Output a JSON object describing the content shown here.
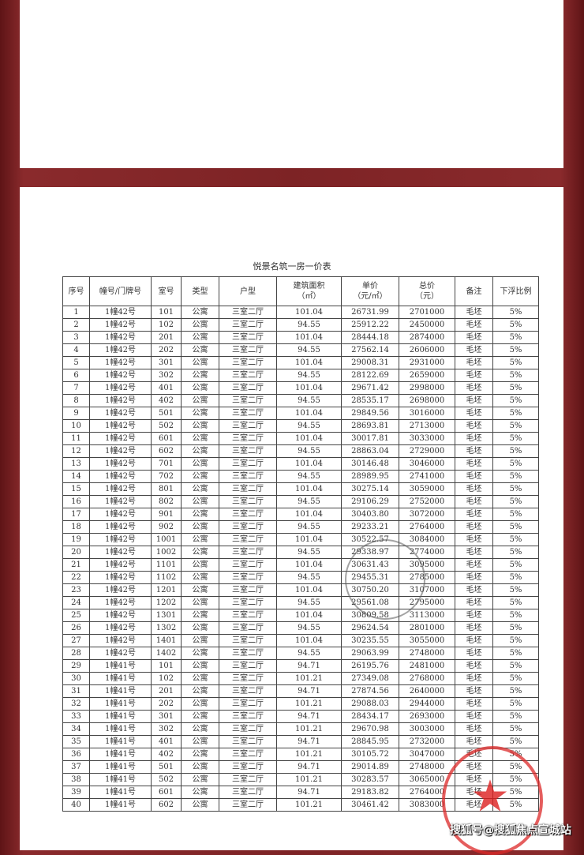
{
  "title": "悦景名筑一房一价表",
  "headers": [
    "序号",
    "幢号/门牌号",
    "室号",
    "类型",
    "户型",
    "建筑面积\n（㎡）",
    "单价\n（元/㎡）",
    "总价\n（元）",
    "备注",
    "下浮比例"
  ],
  "rows": [
    [
      "1",
      "1幢42号",
      "101",
      "公寓",
      "三室二厅",
      "101.04",
      "26731.99",
      "2701000",
      "毛坯",
      "5%"
    ],
    [
      "2",
      "1幢42号",
      "102",
      "公寓",
      "三室二厅",
      "94.55",
      "25912.22",
      "2450000",
      "毛坯",
      "5%"
    ],
    [
      "3",
      "1幢42号",
      "201",
      "公寓",
      "三室二厅",
      "101.04",
      "28444.18",
      "2874000",
      "毛坯",
      "5%"
    ],
    [
      "4",
      "1幢42号",
      "202",
      "公寓",
      "三室二厅",
      "94.55",
      "27562.14",
      "2606000",
      "毛坯",
      "5%"
    ],
    [
      "5",
      "1幢42号",
      "301",
      "公寓",
      "三室二厅",
      "101.04",
      "29008.31",
      "2931000",
      "毛坯",
      "5%"
    ],
    [
      "6",
      "1幢42号",
      "302",
      "公寓",
      "三室二厅",
      "94.55",
      "28122.69",
      "2659000",
      "毛坯",
      "5%"
    ],
    [
      "7",
      "1幢42号",
      "401",
      "公寓",
      "三室二厅",
      "101.04",
      "29671.42",
      "2998000",
      "毛坯",
      "5%"
    ],
    [
      "8",
      "1幢42号",
      "402",
      "公寓",
      "三室二厅",
      "94.55",
      "28535.17",
      "2698000",
      "毛坯",
      "5%"
    ],
    [
      "9",
      "1幢42号",
      "501",
      "公寓",
      "三室二厅",
      "101.04",
      "29849.56",
      "3016000",
      "毛坯",
      "5%"
    ],
    [
      "10",
      "1幢42号",
      "502",
      "公寓",
      "三室二厅",
      "94.55",
      "28693.81",
      "2713000",
      "毛坯",
      "5%"
    ],
    [
      "11",
      "1幢42号",
      "601",
      "公寓",
      "三室二厅",
      "101.04",
      "30017.81",
      "3033000",
      "毛坯",
      "5%"
    ],
    [
      "12",
      "1幢42号",
      "602",
      "公寓",
      "三室二厅",
      "94.55",
      "28863.04",
      "2729000",
      "毛坯",
      "5%"
    ],
    [
      "13",
      "1幢42号",
      "701",
      "公寓",
      "三室二厅",
      "101.04",
      "30146.48",
      "3046000",
      "毛坯",
      "5%"
    ],
    [
      "14",
      "1幢42号",
      "702",
      "公寓",
      "三室二厅",
      "94.55",
      "28989.95",
      "2741000",
      "毛坯",
      "5%"
    ],
    [
      "15",
      "1幢42号",
      "801",
      "公寓",
      "三室二厅",
      "101.04",
      "30275.14",
      "3059000",
      "毛坯",
      "5%"
    ],
    [
      "16",
      "1幢42号",
      "802",
      "公寓",
      "三室二厅",
      "94.55",
      "29106.29",
      "2752000",
      "毛坯",
      "5%"
    ],
    [
      "17",
      "1幢42号",
      "901",
      "公寓",
      "三室二厅",
      "101.04",
      "30403.80",
      "3072000",
      "毛坯",
      "5%"
    ],
    [
      "18",
      "1幢42号",
      "902",
      "公寓",
      "三室二厅",
      "94.55",
      "29233.21",
      "2764000",
      "毛坯",
      "5%"
    ],
    [
      "19",
      "1幢42号",
      "1001",
      "公寓",
      "三室二厅",
      "101.04",
      "30522.57",
      "3084000",
      "毛坯",
      "5%"
    ],
    [
      "20",
      "1幢42号",
      "1002",
      "公寓",
      "三室二厅",
      "94.55",
      "29338.97",
      "2774000",
      "毛坯",
      "5%"
    ],
    [
      "21",
      "1幢42号",
      "1101",
      "公寓",
      "三室二厅",
      "101.04",
      "30631.43",
      "3095000",
      "毛坯",
      "5%"
    ],
    [
      "22",
      "1幢42号",
      "1102",
      "公寓",
      "三室二厅",
      "94.55",
      "29455.31",
      "2785000",
      "毛坯",
      "5%"
    ],
    [
      "23",
      "1幢42号",
      "1201",
      "公寓",
      "三室二厅",
      "101.04",
      "30750.20",
      "3107000",
      "毛坯",
      "5%"
    ],
    [
      "24",
      "1幢42号",
      "1202",
      "公寓",
      "三室二厅",
      "94.55",
      "29561.08",
      "2795000",
      "毛坯",
      "5%"
    ],
    [
      "25",
      "1幢42号",
      "1301",
      "公寓",
      "三室二厅",
      "101.04",
      "30809.58",
      "3113000",
      "毛坯",
      "5%"
    ],
    [
      "26",
      "1幢42号",
      "1302",
      "公寓",
      "三室二厅",
      "94.55",
      "29624.54",
      "2801000",
      "毛坯",
      "5%"
    ],
    [
      "27",
      "1幢42号",
      "1401",
      "公寓",
      "三室二厅",
      "101.04",
      "30235.55",
      "3055000",
      "毛坯",
      "5%"
    ],
    [
      "28",
      "1幢42号",
      "1402",
      "公寓",
      "三室二厅",
      "94.55",
      "29063.99",
      "2748000",
      "毛坯",
      "5%"
    ],
    [
      "29",
      "1幢41号",
      "101",
      "公寓",
      "三室二厅",
      "94.71",
      "26195.76",
      "2481000",
      "毛坯",
      "5%"
    ],
    [
      "30",
      "1幢41号",
      "102",
      "公寓",
      "三室二厅",
      "101.21",
      "27349.08",
      "2768000",
      "毛坯",
      "5%"
    ],
    [
      "31",
      "1幢41号",
      "201",
      "公寓",
      "三室二厅",
      "94.71",
      "27874.56",
      "2640000",
      "毛坯",
      "5%"
    ],
    [
      "32",
      "1幢41号",
      "202",
      "公寓",
      "三室二厅",
      "101.21",
      "29088.03",
      "2944000",
      "毛坯",
      "5%"
    ],
    [
      "33",
      "1幢41号",
      "301",
      "公寓",
      "三室二厅",
      "94.71",
      "28434.17",
      "2693000",
      "毛坯",
      "5%"
    ],
    [
      "34",
      "1幢41号",
      "302",
      "公寓",
      "三室二厅",
      "101.21",
      "29670.98",
      "3003000",
      "毛坯",
      "5%"
    ],
    [
      "35",
      "1幢41号",
      "401",
      "公寓",
      "三室二厅",
      "94.71",
      "28845.95",
      "2732000",
      "毛坯",
      "5%"
    ],
    [
      "36",
      "1幢41号",
      "402",
      "公寓",
      "三室二厅",
      "101.21",
      "30105.72",
      "3047000",
      "毛坯",
      "5%"
    ],
    [
      "37",
      "1幢41号",
      "501",
      "公寓",
      "三室二厅",
      "94.71",
      "29014.89",
      "2748000",
      "毛坯",
      "5%"
    ],
    [
      "38",
      "1幢41号",
      "502",
      "公寓",
      "三室二厅",
      "101.21",
      "30283.57",
      "3065000",
      "毛坯",
      "5%"
    ],
    [
      "39",
      "1幢41号",
      "601",
      "公寓",
      "三室二厅",
      "94.71",
      "29183.82",
      "2764000",
      "毛坯",
      "5%"
    ],
    [
      "40",
      "1幢41号",
      "602",
      "公寓",
      "三室二厅",
      "101.21",
      "30461.42",
      "3083000",
      "毛坯",
      "5%"
    ]
  ],
  "watermark": "搜狐号@搜狐焦点宣城站"
}
